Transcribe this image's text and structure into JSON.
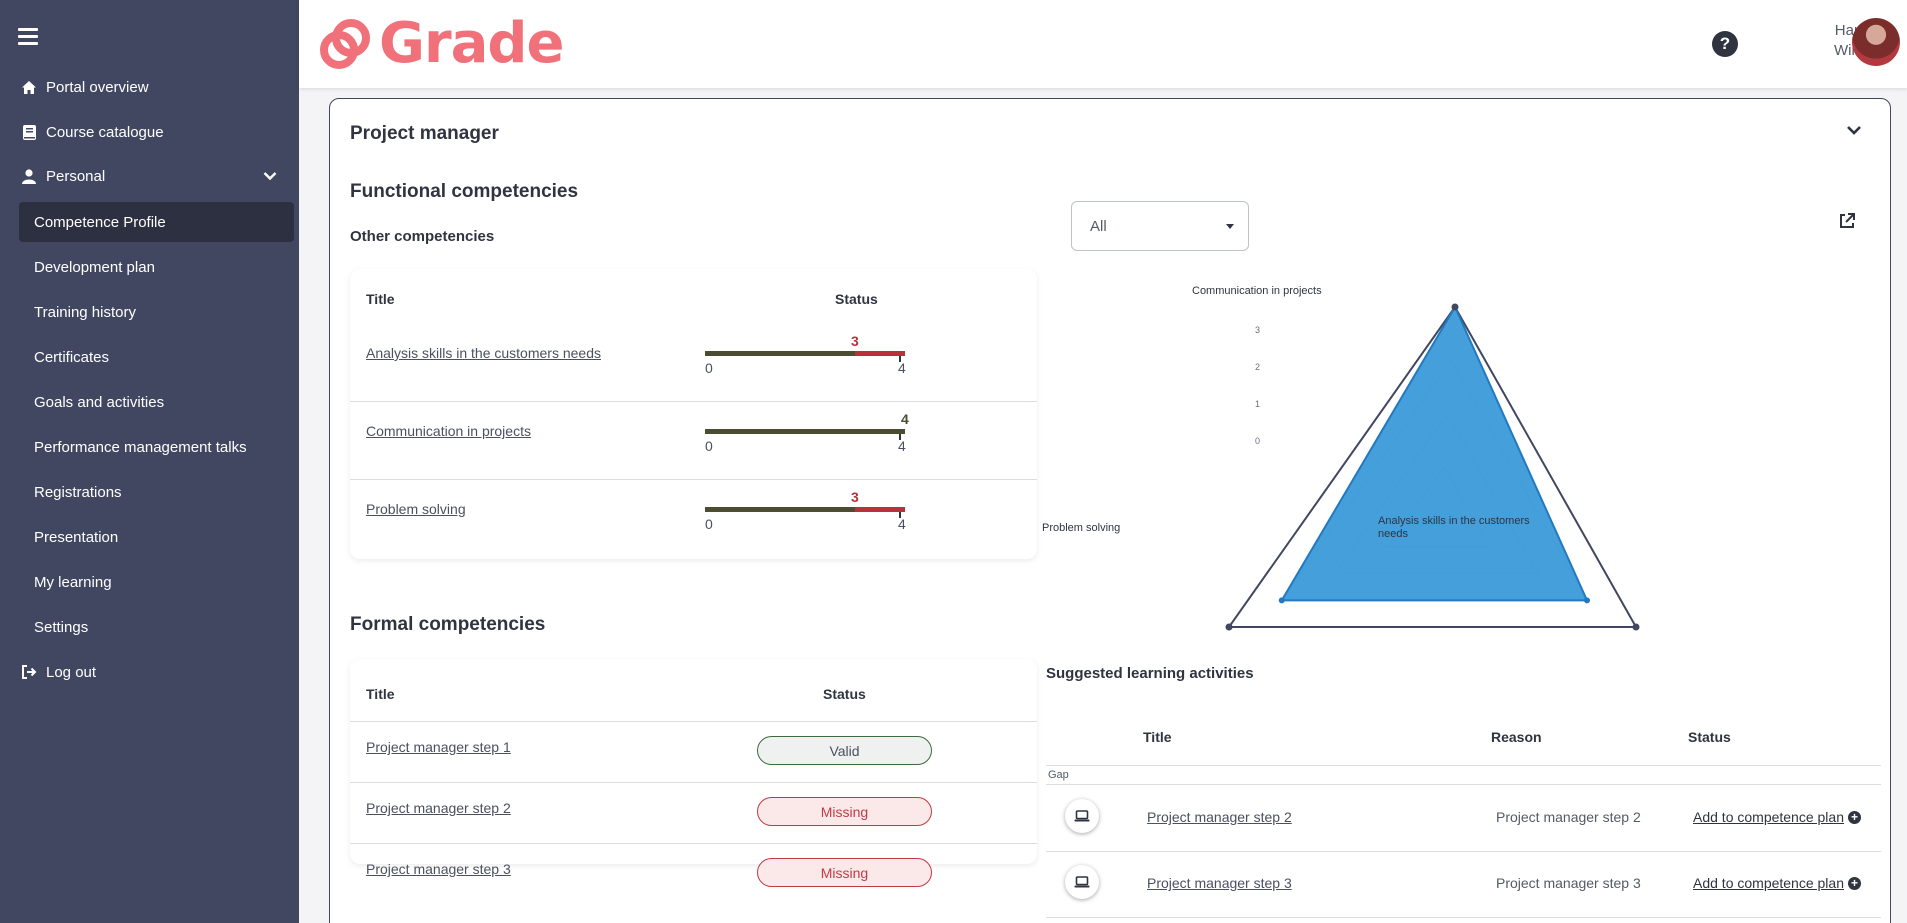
{
  "sidebar": {
    "top_items": [
      {
        "label": "Portal overview",
        "icon": "home-icon"
      },
      {
        "label": "Course catalogue",
        "icon": "book-icon"
      },
      {
        "label": "Personal",
        "icon": "user-icon"
      }
    ],
    "sub_items": [
      {
        "label": "Competence Profile",
        "active": true
      },
      {
        "label": "Development plan"
      },
      {
        "label": "Training history"
      },
      {
        "label": "Certificates"
      },
      {
        "label": "Goals and activities"
      },
      {
        "label": "Performance management talks"
      },
      {
        "label": "Registrations"
      },
      {
        "label": "Presentation"
      },
      {
        "label": "My learning"
      },
      {
        "label": "Settings"
      }
    ],
    "logout_label": "Log out"
  },
  "header": {
    "logo_text": "Grade",
    "help_glyph": "?",
    "user_first": "Hanna",
    "user_last": "Wilson"
  },
  "main": {
    "card_title": "Project manager",
    "functional": {
      "title": "Functional competencies",
      "subtitle": "Other competencies",
      "col_title": "Title",
      "col_status": "Status",
      "filter_value": "All",
      "rows": [
        {
          "title": "Analysis skills in the customers needs",
          "value": 3,
          "min": 0,
          "max": 4
        },
        {
          "title": "Communication in projects",
          "value": 4,
          "min": 0,
          "max": 4
        },
        {
          "title": "Problem solving",
          "value": 3,
          "min": 0,
          "max": 4
        }
      ]
    },
    "radar": {
      "axes": [
        "Communication in projects",
        "Analysis skills in the customers needs",
        "Problem solving"
      ],
      "label_top": "Communication in projects",
      "label_right_1": "Analysis skills in the customers",
      "label_right_2": "needs",
      "label_left": "Problem solving",
      "ticks": [
        "0",
        "1",
        "2",
        "3"
      ],
      "values": [
        4,
        3,
        3
      ],
      "max": 4,
      "fill_color": "#3a9ad9"
    },
    "formal": {
      "title": "Formal competencies",
      "col_title": "Title",
      "col_status": "Status",
      "rows": [
        {
          "title": "Project manager step 1",
          "status": "Valid"
        },
        {
          "title": "Project manager step 2",
          "status": "Missing"
        },
        {
          "title": "Project manager step 3",
          "status": "Missing"
        }
      ]
    },
    "suggested": {
      "title": "Suggested learning activities",
      "col_title": "Title",
      "col_reason": "Reason",
      "col_status": "Status",
      "group_label": "Gap",
      "rows": [
        {
          "title": "Project manager step 2",
          "reason": "Project manager step 2",
          "action": "Add to competence plan"
        },
        {
          "title": "Project manager step 3",
          "reason": "Project manager step 3",
          "action": "Add to competence plan"
        }
      ]
    }
  },
  "colors": {
    "sidebar_bg": "#414760",
    "accent_logo": "#f0717a",
    "bar_ok": "#4a4d31",
    "bar_gap": "#b8323c"
  }
}
